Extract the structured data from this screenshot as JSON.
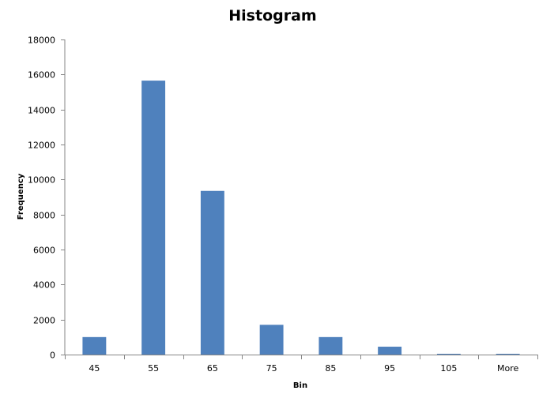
{
  "chart_data": {
    "type": "bar",
    "title": "Histogram",
    "xlabel": "Bin",
    "ylabel": "Frequency",
    "categories": [
      "45",
      "55",
      "65",
      "75",
      "85",
      "95",
      "105",
      "More"
    ],
    "series": [
      {
        "values": [
          1000,
          15650,
          9350,
          1700,
          1000,
          450,
          30,
          25
        ]
      }
    ],
    "ylim": [
      0,
      18000
    ],
    "yticks": [
      0,
      2000,
      4000,
      6000,
      8000,
      10000,
      12000,
      14000,
      16000,
      18000
    ],
    "ytick_labels": [
      "0",
      "2000",
      "4000",
      "6000",
      "8000",
      "10000",
      "12000",
      "14000",
      "16000",
      "18000"
    ],
    "grid": false,
    "legend": "none",
    "colors": {
      "bar": "#4F81BD",
      "axis": "#868686"
    }
  }
}
